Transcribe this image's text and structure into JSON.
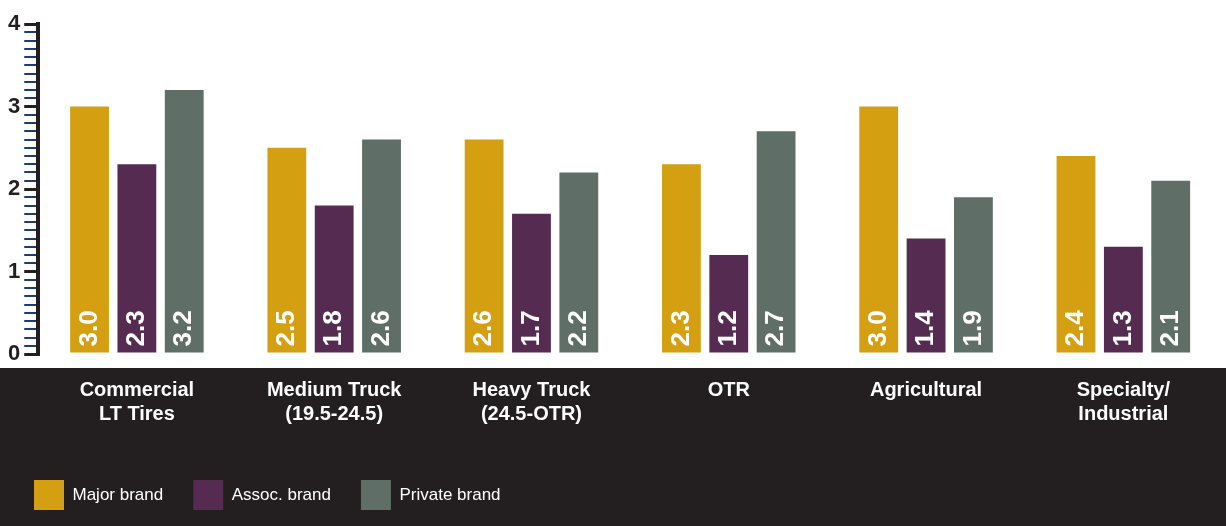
{
  "chart_data": {
    "type": "bar",
    "categories": [
      "Commercial\nLT Tires",
      "Medium Truck\n(19.5-24.5)",
      "Heavy Truck\n(24.5-OTR)",
      "OTR",
      "Agricultural",
      "Specialty/\nIndustrial"
    ],
    "series": [
      {
        "name": "Major brand",
        "color": "#d4a012",
        "values": [
          3.0,
          2.5,
          2.6,
          2.3,
          3.0,
          2.4
        ],
        "value_labels": [
          "3.0",
          "2.5",
          "2.6",
          "2.3",
          "3.0",
          "2.4"
        ]
      },
      {
        "name": "Assoc. brand",
        "color": "#552b52",
        "values": [
          2.3,
          1.8,
          1.7,
          1.2,
          1.4,
          1.3
        ],
        "value_labels": [
          "2.3",
          "1.8",
          "1.7",
          "1.2",
          "1.4",
          "1.3"
        ]
      },
      {
        "name": "Private brand",
        "color": "#5f6e66",
        "values": [
          3.2,
          2.6,
          2.2,
          2.7,
          1.9,
          2.1
        ],
        "value_labels": [
          "3.2",
          "2.6",
          "2.2",
          "2.7",
          "1.9",
          "2.1"
        ]
      }
    ],
    "ylim": [
      0,
      4
    ],
    "yticks": [
      0,
      {
        "value": 0.1,
        "label": null
      },
      {
        "value": 0.2,
        "label": null
      },
      {
        "value": 0.3,
        "label": null
      },
      {
        "value": 0.4,
        "label": null
      },
      {
        "value": 0.5,
        "label": null
      },
      {
        "value": 0.6,
        "label": null
      },
      {
        "value": 0.7,
        "label": null
      },
      {
        "value": 0.8,
        "label": null
      },
      {
        "value": 0.9,
        "label": null
      },
      1,
      {
        "value": 1.1,
        "label": null
      },
      {
        "value": 1.2,
        "label": null
      },
      {
        "value": 1.3,
        "label": null
      },
      {
        "value": 1.4,
        "label": null
      },
      {
        "value": 1.5,
        "label": null
      },
      {
        "value": 1.6,
        "label": null
      },
      {
        "value": 1.7,
        "label": null
      },
      {
        "value": 1.8,
        "label": null
      },
      {
        "value": 1.9,
        "label": null
      },
      2,
      {
        "value": 2.1,
        "label": null
      },
      {
        "value": 2.2,
        "label": null
      },
      {
        "value": 2.3,
        "label": null
      },
      {
        "value": 2.4,
        "label": null
      },
      {
        "value": 2.5,
        "label": null
      },
      {
        "value": 2.6,
        "label": null
      },
      {
        "value": 2.7,
        "label": null
      },
      {
        "value": 2.8,
        "label": null
      },
      {
        "value": 2.9,
        "label": null
      },
      3,
      {
        "value": 3.1,
        "label": null
      },
      {
        "value": 3.2,
        "label": null
      },
      {
        "value": 3.3,
        "label": null
      },
      {
        "value": 3.4,
        "label": null
      },
      {
        "value": 3.5,
        "label": null
      },
      {
        "value": 3.6,
        "label": null
      },
      {
        "value": 3.7,
        "label": null
      },
      {
        "value": 3.8,
        "label": null
      },
      {
        "value": 3.9,
        "label": null
      },
      4
    ],
    "legend": "bottom",
    "grid": false
  }
}
